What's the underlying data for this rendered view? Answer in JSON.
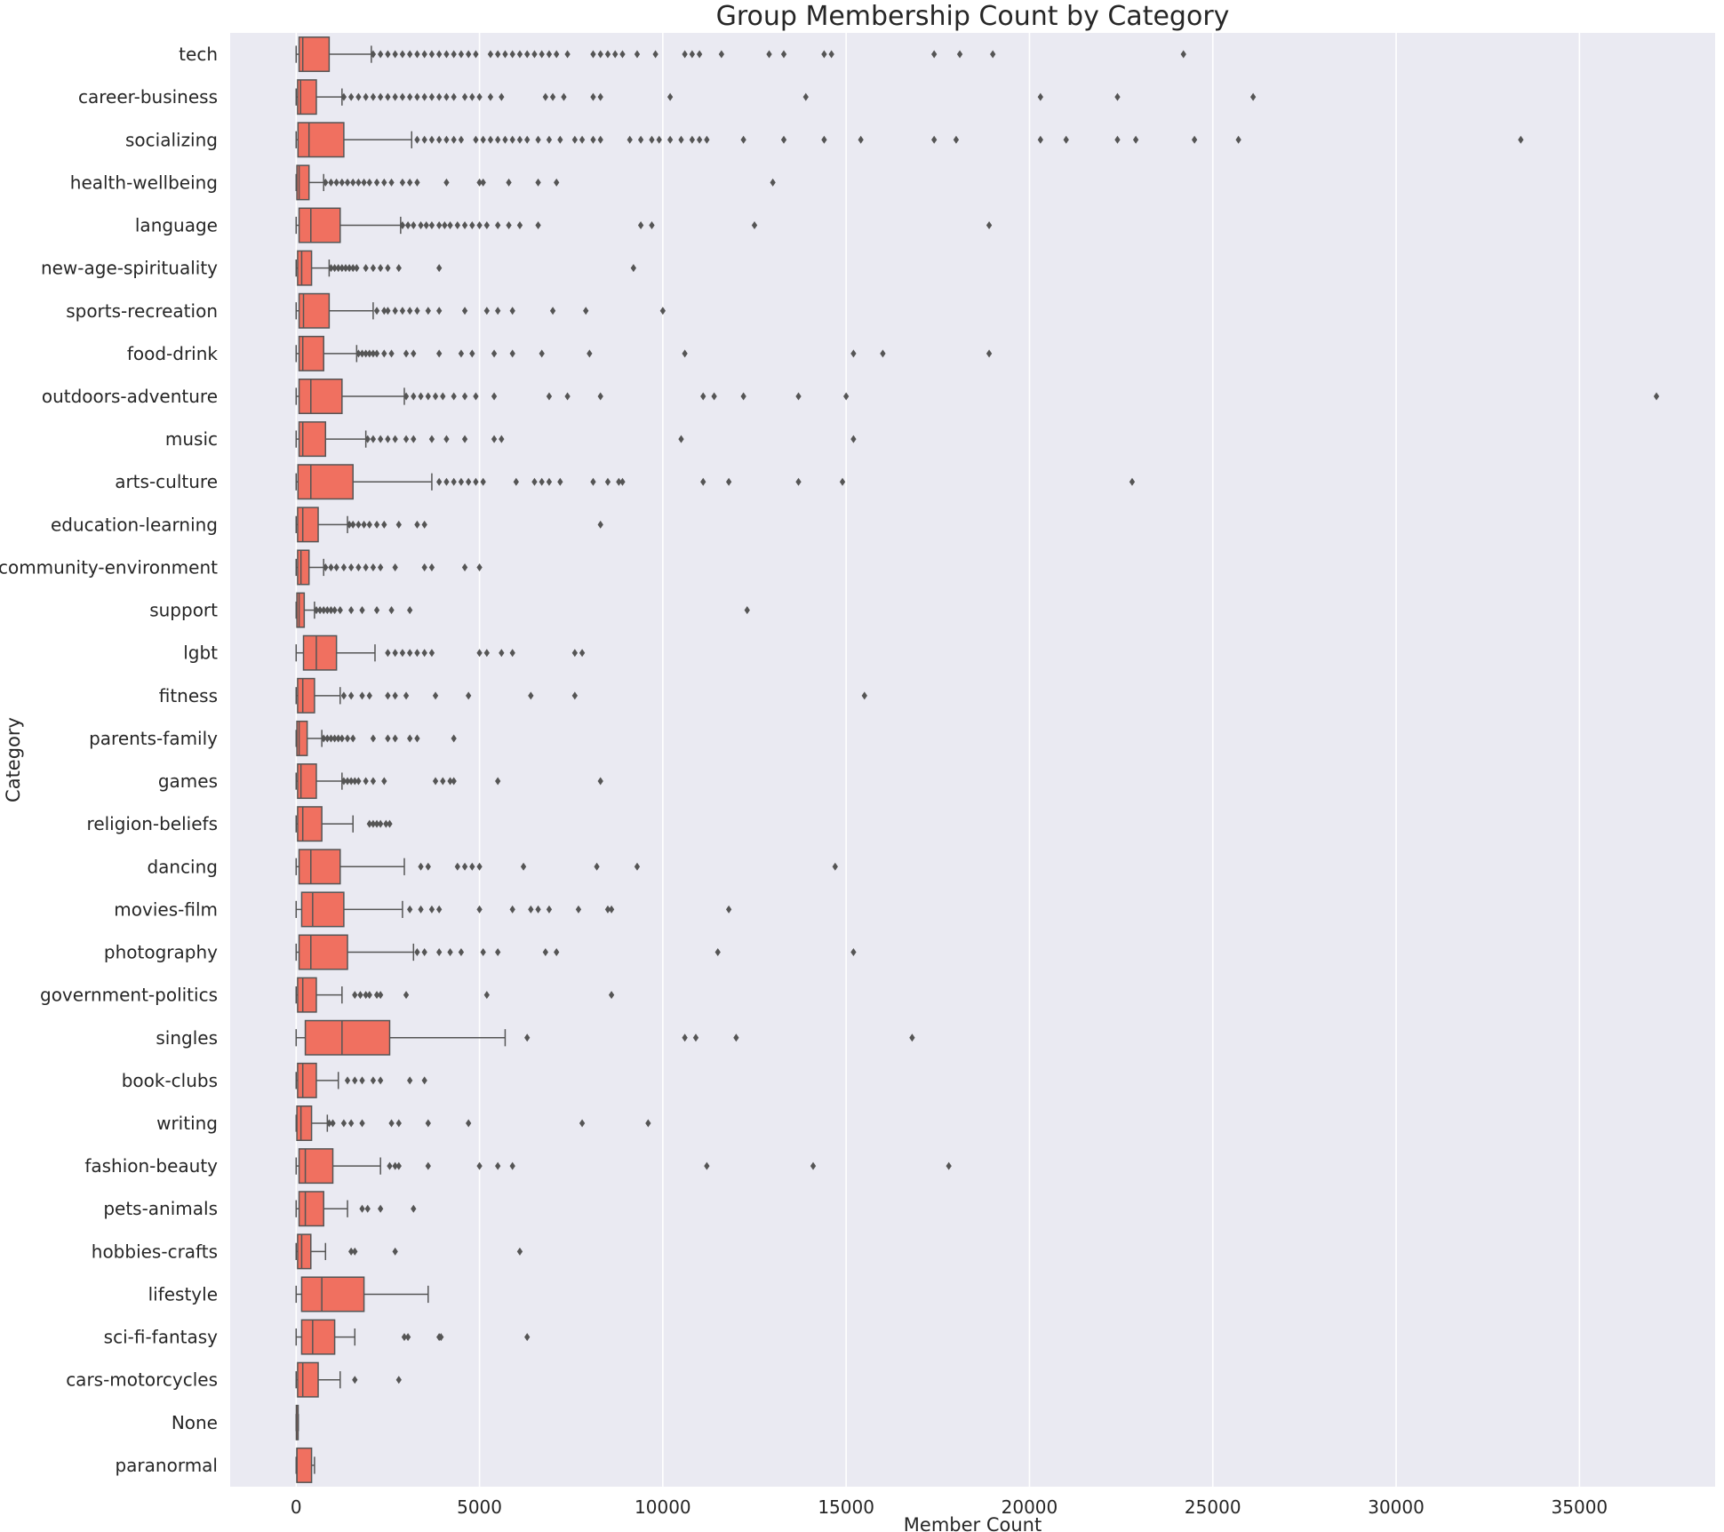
{
  "chart_data": {
    "type": "box",
    "orientation": "horizontal",
    "title": "Group Membership Count by Category",
    "xlabel": "Member Count",
    "ylabel": "Category",
    "xlim": [
      -1800,
      38700
    ],
    "xticks": [
      0,
      5000,
      10000,
      15000,
      20000,
      25000,
      30000,
      35000
    ],
    "grid": true,
    "colors": {
      "box": "#f07060",
      "stroke": "#555555",
      "background": "#eaeaf2",
      "grid": "#ffffff",
      "outlier": "#555555"
    },
    "categories": [
      {
        "name": "tech",
        "min": 0,
        "q1": 80,
        "median": 180,
        "q3": 900,
        "max": 2050,
        "outliers": [
          2100,
          2300,
          2500,
          2700,
          2900,
          3100,
          3300,
          3500,
          3700,
          3900,
          4100,
          4300,
          4500,
          4700,
          4900,
          5300,
          5500,
          5700,
          5900,
          6100,
          6300,
          6500,
          6700,
          6900,
          7100,
          7400,
          8100,
          8300,
          8500,
          8700,
          8900,
          9300,
          9800,
          10600,
          10800,
          11000,
          11600,
          12900,
          13300,
          14400,
          14600,
          17400,
          18100,
          19000,
          24200
        ]
      },
      {
        "name": "career-business",
        "min": 0,
        "q1": 40,
        "median": 120,
        "q3": 550,
        "max": 1250,
        "outliers": [
          1300,
          1500,
          1700,
          1900,
          2100,
          2300,
          2500,
          2700,
          2900,
          3100,
          3300,
          3500,
          3700,
          3900,
          4100,
          4300,
          4600,
          4800,
          5000,
          5300,
          5600,
          6800,
          7000,
          7300,
          8100,
          8300,
          10200,
          13900,
          20300,
          22400,
          26100
        ]
      },
      {
        "name": "socializing",
        "min": 0,
        "q1": 50,
        "median": 350,
        "q3": 1300,
        "max": 3150,
        "outliers": [
          3300,
          3500,
          3700,
          3900,
          4100,
          4300,
          4500,
          4900,
          5100,
          5300,
          5500,
          5700,
          5900,
          6100,
          6300,
          6600,
          6900,
          7200,
          7600,
          7800,
          8100,
          8300,
          9100,
          9400,
          9700,
          9900,
          10200,
          10500,
          10800,
          11000,
          11200,
          12200,
          13300,
          14400,
          15400,
          17400,
          18000,
          20300,
          21000,
          22400,
          22900,
          24500,
          25700,
          33400
        ]
      },
      {
        "name": "health-wellbeing",
        "min": 0,
        "q1": 20,
        "median": 80,
        "q3": 350,
        "max": 750,
        "outliers": [
          800,
          950,
          1100,
          1250,
          1400,
          1550,
          1700,
          1850,
          2000,
          2200,
          2400,
          2600,
          2900,
          3100,
          3300,
          4100,
          5000,
          5100,
          5800,
          6600,
          7100,
          13000
        ]
      },
      {
        "name": "language",
        "min": 0,
        "q1": 80,
        "median": 400,
        "q3": 1200,
        "max": 2850,
        "outliers": [
          2900,
          3050,
          3200,
          3400,
          3550,
          3700,
          3900,
          4050,
          4200,
          4400,
          4600,
          4800,
          5000,
          5200,
          5500,
          5800,
          6100,
          6600,
          9400,
          9700,
          12500,
          18900
        ]
      },
      {
        "name": "new-age-spirituality",
        "min": 0,
        "q1": 40,
        "median": 150,
        "q3": 420,
        "max": 900,
        "outliers": [
          950,
          1050,
          1150,
          1250,
          1350,
          1450,
          1550,
          1650,
          1900,
          2100,
          2300,
          2500,
          2800,
          3900,
          9200
        ]
      },
      {
        "name": "sports-recreation",
        "min": 0,
        "q1": 80,
        "median": 200,
        "q3": 900,
        "max": 2100,
        "outliers": [
          2200,
          2400,
          2500,
          2700,
          2900,
          3100,
          3300,
          3600,
          3900,
          4600,
          5200,
          5500,
          5900,
          7000,
          7900,
          10000
        ]
      },
      {
        "name": "food-drink",
        "min": 0,
        "q1": 80,
        "median": 180,
        "q3": 750,
        "max": 1650,
        "outliers": [
          1700,
          1800,
          1900,
          2000,
          2100,
          2200,
          2400,
          2600,
          3000,
          3200,
          3900,
          4500,
          4800,
          5400,
          5900,
          6700,
          8000,
          10600,
          15200,
          16000,
          18900
        ]
      },
      {
        "name": "outdoors-adventure",
        "min": 0,
        "q1": 80,
        "median": 400,
        "q3": 1250,
        "max": 2950,
        "outliers": [
          3000,
          3200,
          3400,
          3600,
          3800,
          4000,
          4300,
          4600,
          4900,
          5400,
          6900,
          7400,
          8300,
          11100,
          11400,
          12200,
          13700,
          15000,
          37100
        ]
      },
      {
        "name": "music",
        "min": 0,
        "q1": 80,
        "median": 180,
        "q3": 800,
        "max": 1900,
        "outliers": [
          1950,
          2100,
          2300,
          2500,
          2700,
          3000,
          3200,
          3700,
          4100,
          4600,
          5400,
          5600,
          10500,
          15200
        ]
      },
      {
        "name": "arts-culture",
        "min": 0,
        "q1": 50,
        "median": 400,
        "q3": 1550,
        "max": 3700,
        "outliers": [
          3900,
          4100,
          4300,
          4500,
          4700,
          4900,
          5100,
          6000,
          6500,
          6700,
          6900,
          7200,
          8100,
          8500,
          8800,
          8900,
          11100,
          11800,
          13700,
          14900,
          22800
        ]
      },
      {
        "name": "education-learning",
        "min": 0,
        "q1": 40,
        "median": 180,
        "q3": 600,
        "max": 1400,
        "outliers": [
          1450,
          1550,
          1700,
          1850,
          2000,
          2200,
          2400,
          2800,
          3300,
          3500,
          8300
        ]
      },
      {
        "name": "community-environment",
        "min": 0,
        "q1": 40,
        "median": 130,
        "q3": 350,
        "max": 750,
        "outliers": [
          800,
          950,
          1100,
          1300,
          1500,
          1700,
          1900,
          2100,
          2300,
          2700,
          3500,
          3700,
          4600,
          5000
        ]
      },
      {
        "name": "support",
        "min": 0,
        "q1": 20,
        "median": 80,
        "q3": 220,
        "max": 500,
        "outliers": [
          550,
          650,
          750,
          850,
          950,
          1050,
          1200,
          1500,
          1800,
          2200,
          2600,
          3100,
          12300
        ]
      },
      {
        "name": "lgbt",
        "min": 0,
        "q1": 200,
        "median": 550,
        "q3": 1100,
        "max": 2150,
        "outliers": [
          2500,
          2700,
          2900,
          3100,
          3300,
          3500,
          3700,
          5000,
          5200,
          5600,
          5900,
          7600,
          7800
        ]
      },
      {
        "name": "fitness",
        "min": 0,
        "q1": 40,
        "median": 180,
        "q3": 500,
        "max": 1200,
        "outliers": [
          1300,
          1500,
          1800,
          2000,
          2500,
          2700,
          3000,
          3800,
          4700,
          6400,
          7600,
          15500
        ]
      },
      {
        "name": "parents-family",
        "min": 0,
        "q1": 20,
        "median": 80,
        "q3": 300,
        "max": 700,
        "outliers": [
          750,
          850,
          950,
          1050,
          1150,
          1250,
          1400,
          1550,
          2100,
          2500,
          2700,
          3100,
          3300,
          4300
        ]
      },
      {
        "name": "games",
        "min": 0,
        "q1": 40,
        "median": 130,
        "q3": 550,
        "max": 1250,
        "outliers": [
          1300,
          1400,
          1500,
          1600,
          1700,
          1900,
          2100,
          2400,
          3800,
          4000,
          4200,
          4300,
          5500,
          8300
        ]
      },
      {
        "name": "religion-beliefs",
        "min": 0,
        "q1": 40,
        "median": 180,
        "q3": 700,
        "max": 1550,
        "outliers": [
          2000,
          2100,
          2200,
          2300,
          2450,
          2550
        ]
      },
      {
        "name": "dancing",
        "min": 0,
        "q1": 80,
        "median": 400,
        "q3": 1200,
        "max": 2950,
        "outliers": [
          3400,
          3600,
          4400,
          4600,
          4800,
          5000,
          6200,
          8200,
          9300,
          14700
        ]
      },
      {
        "name": "movies-film",
        "min": 0,
        "q1": 150,
        "median": 450,
        "q3": 1300,
        "max": 2900,
        "outliers": [
          3100,
          3400,
          3700,
          3900,
          5000,
          5900,
          6400,
          6600,
          6900,
          7700,
          8500,
          8600,
          11800
        ]
      },
      {
        "name": "photography",
        "min": 0,
        "q1": 80,
        "median": 400,
        "q3": 1400,
        "max": 3200,
        "outliers": [
          3300,
          3500,
          3900,
          4200,
          4500,
          5100,
          5500,
          6800,
          7100,
          11500,
          15200
        ]
      },
      {
        "name": "government-politics",
        "min": 0,
        "q1": 40,
        "median": 180,
        "q3": 550,
        "max": 1250,
        "outliers": [
          1600,
          1750,
          1900,
          2000,
          2200,
          2300,
          3000,
          5200,
          8600
        ]
      },
      {
        "name": "singles",
        "min": 0,
        "q1": 250,
        "median": 1250,
        "q3": 2550,
        "max": 5700,
        "outliers": [
          6300,
          10600,
          10900,
          12000,
          16800
        ]
      },
      {
        "name": "book-clubs",
        "min": 0,
        "q1": 40,
        "median": 180,
        "q3": 550,
        "max": 1150,
        "outliers": [
          1400,
          1600,
          1800,
          2100,
          2300,
          3100,
          3500
        ]
      },
      {
        "name": "writing",
        "min": 0,
        "q1": 20,
        "median": 130,
        "q3": 420,
        "max": 850,
        "outliers": [
          900,
          1000,
          1300,
          1500,
          1800,
          2600,
          2800,
          3600,
          4700,
          7800,
          9600
        ]
      },
      {
        "name": "fashion-beauty",
        "min": 0,
        "q1": 80,
        "median": 250,
        "q3": 1000,
        "max": 2300,
        "outliers": [
          2550,
          2700,
          2800,
          3600,
          5000,
          5500,
          5900,
          11200,
          14100,
          17800
        ]
      },
      {
        "name": "pets-animals",
        "min": 0,
        "q1": 80,
        "median": 250,
        "q3": 750,
        "max": 1400,
        "outliers": [
          1800,
          1950,
          2300,
          3200
        ]
      },
      {
        "name": "hobbies-crafts",
        "min": 0,
        "q1": 40,
        "median": 150,
        "q3": 400,
        "max": 800,
        "outliers": [
          1500,
          1600,
          2700,
          6100
        ]
      },
      {
        "name": "lifestyle",
        "min": 0,
        "q1": 150,
        "median": 700,
        "q3": 1850,
        "max": 3600,
        "outliers": []
      },
      {
        "name": "sci-fi-fantasy",
        "min": 0,
        "q1": 150,
        "median": 450,
        "q3": 1050,
        "max": 1600,
        "outliers": [
          2950,
          3050,
          3900,
          3950,
          6300
        ]
      },
      {
        "name": "cars-motorcycles",
        "min": 0,
        "q1": 40,
        "median": 180,
        "q3": 600,
        "max": 1200,
        "outliers": [
          1600,
          2800
        ]
      },
      {
        "name": "None",
        "min": 0,
        "q1": 5,
        "median": 15,
        "q3": 40,
        "max": 60,
        "outliers": []
      },
      {
        "name": "paranormal",
        "min": 0,
        "q1": 20,
        "median": 20,
        "q3": 420,
        "max": 500,
        "outliers": []
      }
    ]
  }
}
